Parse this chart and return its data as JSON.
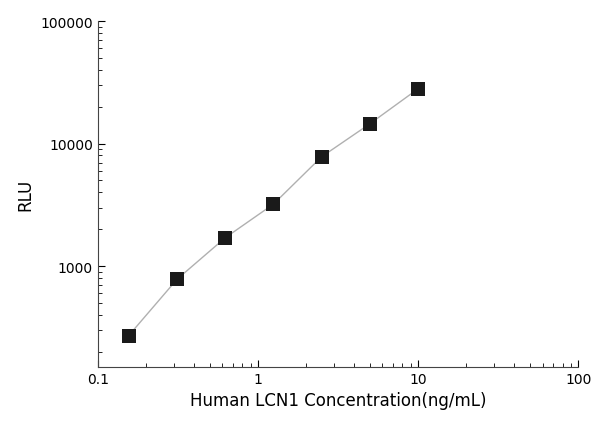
{
  "x": [
    0.156,
    0.313,
    0.625,
    1.25,
    2.5,
    5.0,
    10.0
  ],
  "y": [
    270,
    780,
    1700,
    3200,
    7800,
    14500,
    28000
  ],
  "xlim": [
    0.1,
    100
  ],
  "ylim": [
    150,
    100000
  ],
  "xlabel": "Human LCN1 Concentration(ng/mL)",
  "ylabel": "RLU",
  "line_color": "#b0b0b0",
  "marker_color": "#1a1a1a",
  "marker": "s",
  "marker_size": 5,
  "line_width": 1.0,
  "xlabel_fontsize": 12,
  "ylabel_fontsize": 12,
  "tick_fontsize": 10,
  "background_color": "#ffffff",
  "xticks": [
    0.1,
    1,
    10,
    100
  ],
  "xtick_labels": [
    "0.1",
    "1",
    "10",
    "100"
  ],
  "yticks": [
    1000,
    10000,
    100000
  ],
  "ytick_labels": [
    "1000",
    "10000",
    "100000"
  ]
}
